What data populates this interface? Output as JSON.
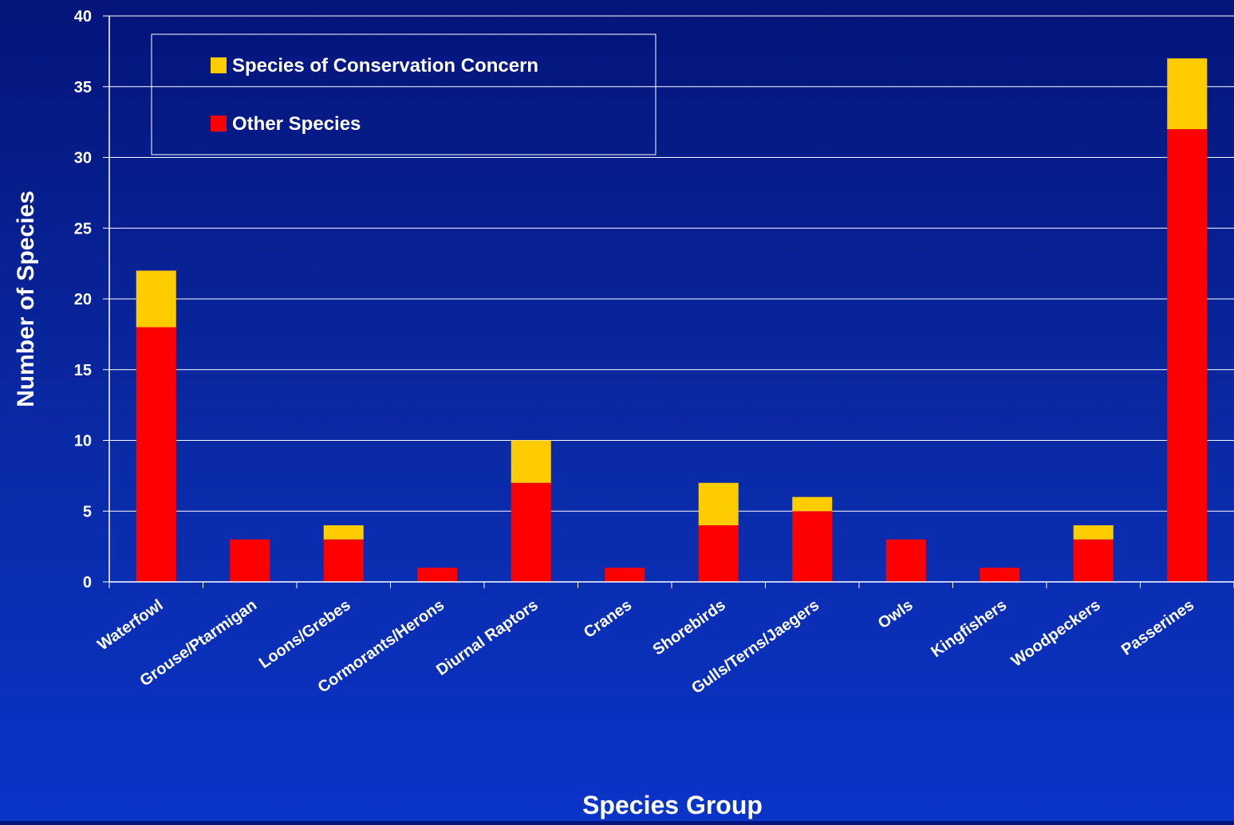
{
  "chart_data": {
    "type": "bar",
    "stacked": true,
    "title": "",
    "xlabel": "Species Group",
    "ylabel": "Number of Species",
    "ylim": [
      0,
      40
    ],
    "yticks": [
      0,
      5,
      10,
      15,
      20,
      25,
      30,
      35,
      40
    ],
    "grid": true,
    "legend_position": "top-left",
    "categories": [
      "Waterfowl",
      "Grouse/Ptarmigan",
      "Loons/Grebes",
      "Cormorants/Herons",
      "Diurnal Raptors",
      "Cranes",
      "Shorebirds",
      "Gulls/Terns/Jaegers",
      "Owls",
      "Kingfishers",
      "Woodpeckers",
      "Passerines"
    ],
    "series": [
      {
        "name": "Other Species",
        "color": "#ff0000",
        "values": [
          18,
          3,
          3,
          1,
          7,
          1,
          4,
          5,
          3,
          1,
          3,
          32
        ]
      },
      {
        "name": "Species of Conservation Concern",
        "color": "#ffcc00",
        "values": [
          4,
          0,
          1,
          0,
          3,
          0,
          3,
          1,
          0,
          0,
          1,
          5
        ]
      }
    ],
    "legend_order": [
      "Species of Conservation Concern",
      "Other Species"
    ]
  },
  "colors": {
    "background_top": "#04147a",
    "background_bottom": "#0a34c8",
    "axis": "#ffffff",
    "gridline": "#ffffff",
    "text": "#ffffff"
  }
}
